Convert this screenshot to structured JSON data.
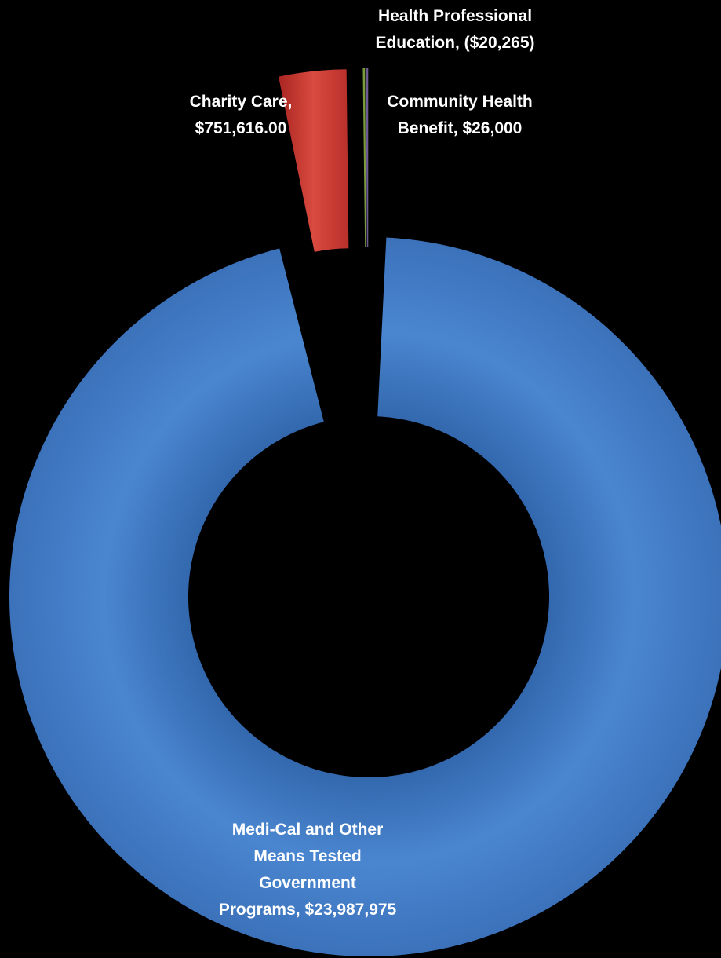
{
  "chart_data": {
    "type": "pie",
    "variant": "exploded-donut",
    "title": "",
    "legend": "none",
    "start_angle_deg": 0,
    "slices": [
      {
        "category": "Medi-Cal and Other Means Tested Government Programs",
        "value": 23987975,
        "label_lines": [
          "Medi-Cal and Other",
          "Means Tested",
          "Government",
          "Programs, $23,987,975"
        ],
        "color": "#4a86d0"
      },
      {
        "category": "Charity Care",
        "value": 751616,
        "label_lines": [
          "Charity Care,",
          "$751,616.00"
        ],
        "color": "#c9342f"
      },
      {
        "category": "Health Professional Education",
        "value": 20265,
        "label_lines": [
          "Health Professional",
          "Education, ($20,265)"
        ],
        "color": "#7a9a3e"
      },
      {
        "category": "Community Health Benefit",
        "value": 26000,
        "label_lines": [
          "Community Health",
          "Benefit, $26,000"
        ],
        "color": "#6d5a94"
      }
    ]
  }
}
